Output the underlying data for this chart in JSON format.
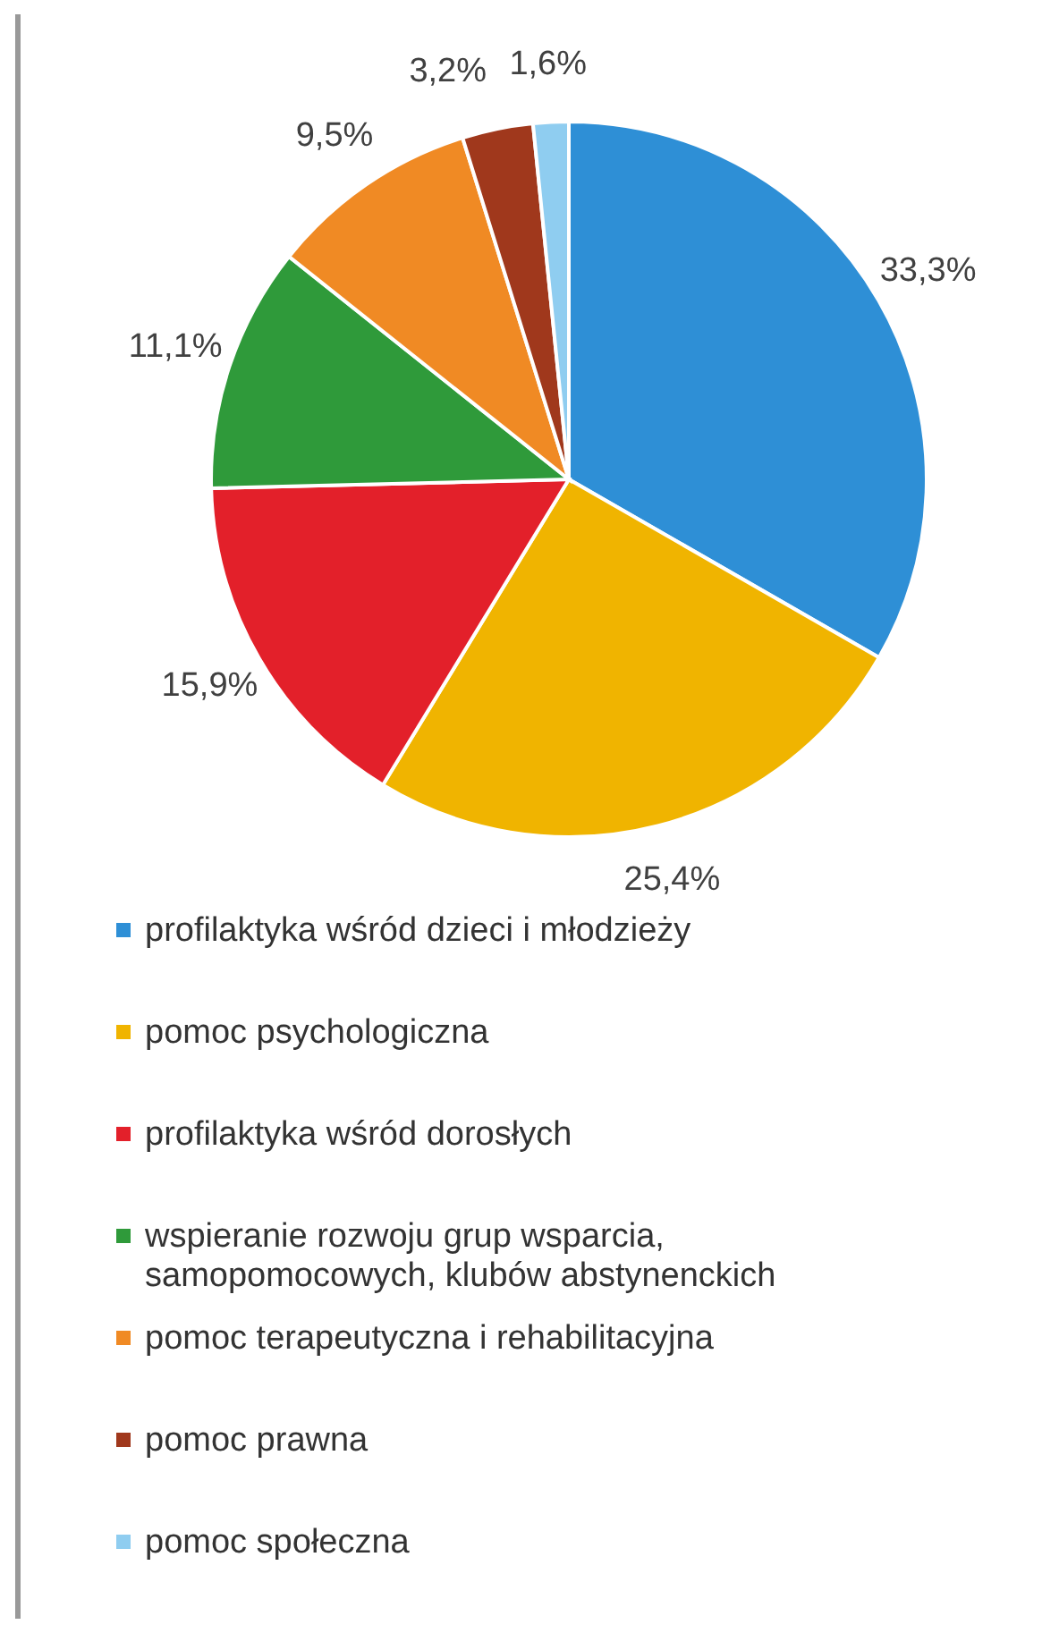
{
  "chart_data": {
    "type": "pie",
    "categories": [
      "profilaktyka wśród dzieci i młodzieży",
      "pomoc psychologiczna",
      "profilaktyka wśród dorosłych",
      "wspieranie rozwoju grup wsparcia, samopomocowych, klubów abstynenckich",
      "pomoc terapeutyczna i rehabilitacyjna",
      "pomoc prawna",
      "pomoc społeczna"
    ],
    "values": [
      33.3,
      25.4,
      15.9,
      11.1,
      9.5,
      3.2,
      1.6
    ],
    "value_labels": [
      "33,3%",
      "25,4%",
      "15,9%",
      "11,1%",
      "9,5%",
      "3,2%",
      "1,6%"
    ],
    "colors": [
      "#2e8fd6",
      "#f0b400",
      "#e3202a",
      "#2f9a3a",
      "#f08a24",
      "#a0381c",
      "#8fcdf0"
    ],
    "legend": "bottom"
  }
}
